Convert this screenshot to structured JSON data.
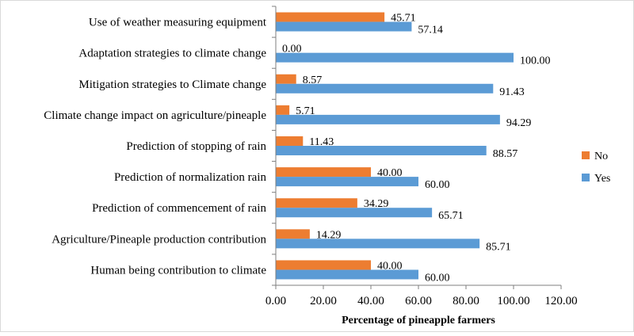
{
  "chart_data": {
    "type": "bar",
    "orientation": "horizontal",
    "categories": [
      "Use of weather measuring equipment",
      "Adaptation strategies to climate change",
      "Mitigation strategies to Climate change",
      "Climate change impact on agriculture/pineaple",
      "Prediction of stopping of rain",
      "Prediction of normalization rain",
      "Prediction of commencement of rain",
      "Agriculture/Pineaple production contribution",
      "Human being contribution to climate"
    ],
    "series": [
      {
        "name": "No",
        "color": "#ED7D31",
        "values": [
          45.71,
          0.0,
          8.57,
          5.71,
          11.43,
          40.0,
          34.29,
          14.29,
          40.0
        ],
        "labels": [
          "45.71",
          "0.00",
          "8.57",
          "5.71",
          "11.43",
          "40.00",
          "34.29",
          "14.29",
          "40.00"
        ]
      },
      {
        "name": "Yes",
        "color": "#5B9BD5",
        "values": [
          57.14,
          100.0,
          91.43,
          94.29,
          88.57,
          60.0,
          65.71,
          85.71,
          60.0
        ],
        "labels": [
          "57.14",
          "100.00",
          "91.43",
          "94.29",
          "88.57",
          "60.00",
          "65.71",
          "85.71",
          "60.00"
        ]
      }
    ],
    "xlabel": "Percentage of pineapple farmers",
    "xlim": [
      0,
      120
    ],
    "xticks": [
      "0.00",
      "20.00",
      "40.00",
      "60.00",
      "80.00",
      "100.00",
      "120.00"
    ],
    "grid": false,
    "legend_position": "right",
    "legend": [
      "No",
      "Yes"
    ]
  }
}
